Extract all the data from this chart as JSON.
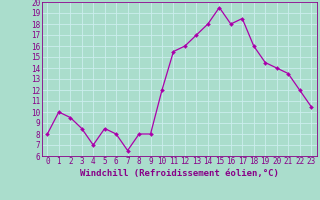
{
  "x": [
    0,
    1,
    2,
    3,
    4,
    5,
    6,
    7,
    8,
    9,
    10,
    11,
    12,
    13,
    14,
    15,
    16,
    17,
    18,
    19,
    20,
    21,
    22,
    23
  ],
  "y": [
    8,
    10,
    9.5,
    8.5,
    7,
    8.5,
    8,
    6.5,
    8,
    8,
    12,
    15.5,
    16,
    17,
    18,
    19.5,
    18,
    18.5,
    16,
    14.5,
    14,
    13.5,
    12,
    10.5
  ],
  "line_color": "#aa00aa",
  "marker": "D",
  "marker_size": 2,
  "bg_color": "#aaddcc",
  "grid_color": "#bbddcc",
  "xlabel": "Windchill (Refroidissement éolien,°C)",
  "xlabel_fontsize": 6.5,
  "tick_color": "#880088",
  "tick_fontsize": 5.5,
  "ylim": [
    6,
    20
  ],
  "xlim": [
    -0.5,
    23.5
  ],
  "yticks": [
    6,
    7,
    8,
    9,
    10,
    11,
    12,
    13,
    14,
    15,
    16,
    17,
    18,
    19,
    20
  ],
  "xticks": [
    0,
    1,
    2,
    3,
    4,
    5,
    6,
    7,
    8,
    9,
    10,
    11,
    12,
    13,
    14,
    15,
    16,
    17,
    18,
    19,
    20,
    21,
    22,
    23
  ]
}
